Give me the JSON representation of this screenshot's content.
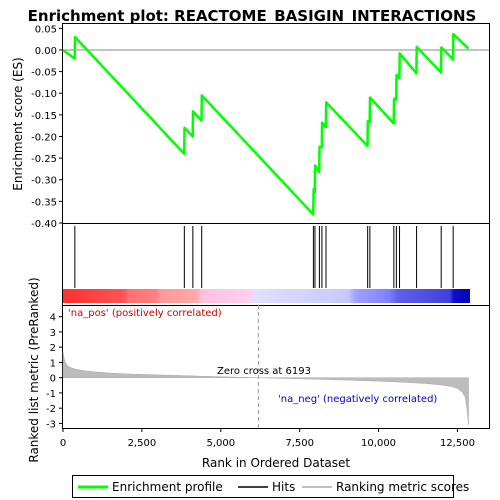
{
  "chart_data": [
    {
      "type": "line",
      "title": "Enrichment plot: REACTOME_BASIGIN_INTERACTIONS",
      "ylabel": "Enrichment score (ES)",
      "xlim": [
        0,
        13500
      ],
      "ylim": [
        -0.4,
        0.06
      ],
      "yticks": [
        0.05,
        0.0,
        -0.05,
        -0.1,
        -0.15,
        -0.2,
        -0.25,
        -0.3,
        -0.35,
        -0.4
      ],
      "ytick_labels": [
        "0.05",
        "0.00",
        "-0.05",
        "-0.10",
        "-0.15",
        "-0.20",
        "-0.25",
        "-0.30",
        "-0.35",
        "-0.40"
      ],
      "series": [
        {
          "name": "Enrichment profile",
          "color": "#00ff00",
          "x": [
            0,
            370,
            380,
            3840,
            3850,
            4110,
            4120,
            4390,
            4400,
            7930,
            7940,
            7980,
            7990,
            8120,
            8130,
            8200,
            8210,
            8330,
            8340,
            9650,
            9660,
            9720,
            9730,
            10480,
            10490,
            10560,
            10570,
            10660,
            10670,
            11200,
            11210,
            11980,
            11990,
            12360,
            12370,
            12850
          ],
          "y": [
            0.0,
            -0.02,
            0.03,
            -0.24,
            -0.18,
            -0.2,
            -0.142,
            -0.163,
            -0.105,
            -0.38,
            -0.322,
            -0.33,
            -0.267,
            -0.282,
            -0.224,
            -0.225,
            -0.168,
            -0.178,
            -0.121,
            -0.222,
            -0.165,
            -0.167,
            -0.11,
            -0.17,
            -0.113,
            -0.115,
            -0.058,
            -0.065,
            -0.008,
            -0.054,
            0.007,
            -0.052,
            0.006,
            -0.022,
            0.037,
            0.003
          ]
        }
      ]
    },
    {
      "type": "barcode",
      "series": [
        {
          "name": "Hits",
          "color": "#000000",
          "x": [
            375,
            3845,
            4115,
            4395,
            7935,
            7985,
            8125,
            8205,
            8335,
            9655,
            9725,
            10485,
            10565,
            10665,
            11205,
            11985,
            12365
          ]
        }
      ]
    },
    {
      "type": "area",
      "xlabel": "Rank in Ordered Dataset",
      "ylabel": "Ranked list metric (PreRanked)",
      "xlim": [
        0,
        13500
      ],
      "ylim": [
        -3.3,
        4.7
      ],
      "xticks": [
        0,
        2500,
        5000,
        7500,
        10000,
        12500
      ],
      "xtick_labels": [
        "0",
        "2,500",
        "5,000",
        "7,500",
        "10,000",
        "12,500"
      ],
      "yticks": [
        4,
        3,
        2,
        1,
        0,
        -1,
        -2,
        -3
      ],
      "ytick_labels": [
        "4",
        "3",
        "2",
        "1",
        "0",
        "-1",
        "-2",
        "-3"
      ],
      "zero_cross": 6193,
      "zero_cross_label": "Zero cross at 6193",
      "pos_label": "'na_pos' (positively correlated)",
      "neg_label": "'na_neg' (negatively correlated)",
      "series": [
        {
          "name": "Ranking metric scores",
          "color": "#b0b0b0",
          "x": [
            0,
            40,
            100,
            200,
            400,
            700,
            1000,
            1500,
            2000,
            3000,
            4000,
            5000,
            6193,
            7000,
            8000,
            9000,
            10000,
            10800,
            11500,
            12000,
            12300,
            12500,
            12650,
            12750,
            12800,
            12850
          ],
          "y": [
            1.7,
            1.2,
            0.9,
            0.7,
            0.55,
            0.45,
            0.38,
            0.3,
            0.25,
            0.18,
            0.12,
            0.06,
            0.0,
            -0.05,
            -0.1,
            -0.16,
            -0.23,
            -0.3,
            -0.38,
            -0.48,
            -0.58,
            -0.7,
            -0.95,
            -1.3,
            -2.0,
            -3.1
          ]
        }
      ]
    }
  ],
  "legend": {
    "items": [
      {
        "label": "Enrichment profile",
        "color": "#00ff00"
      },
      {
        "label": "Hits",
        "color": "#000000"
      },
      {
        "label": "Ranking metric scores",
        "color": "#c0c0c0"
      }
    ]
  }
}
